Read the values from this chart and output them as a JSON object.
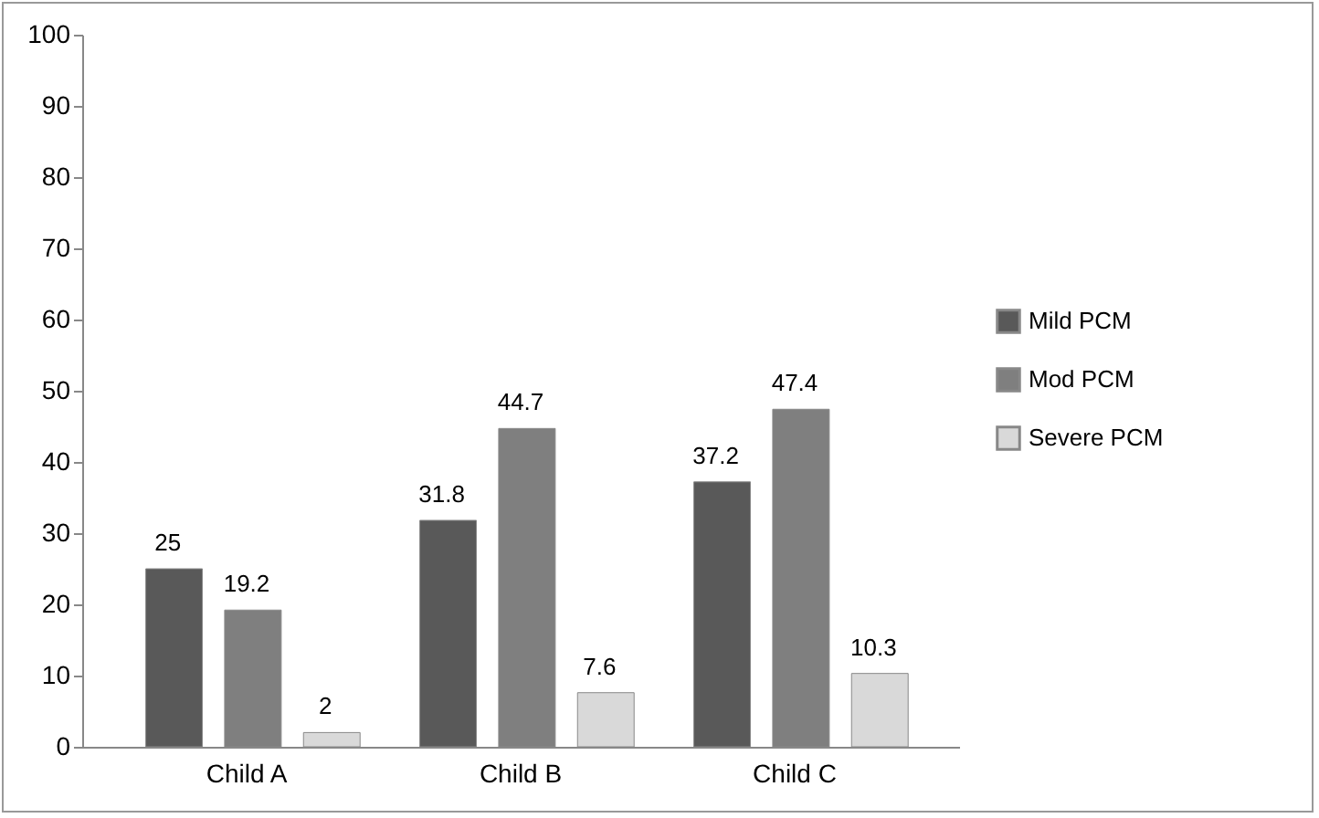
{
  "chart_data": {
    "type": "bar",
    "categories": [
      "Child A",
      "Child B",
      "Child C"
    ],
    "series": [
      {
        "name": "Mild PCM",
        "color": "#595959",
        "values": [
          25,
          31.8,
          37.2
        ]
      },
      {
        "name": "Mod PCM",
        "color": "#7f7f7f",
        "values": [
          19.2,
          44.7,
          47.4
        ]
      },
      {
        "name": "Severe PCM",
        "color": "#d9d9d9",
        "values": [
          2,
          7.6,
          10.3
        ]
      }
    ],
    "ylim": [
      0,
      100
    ],
    "yticks": [
      0,
      10,
      20,
      30,
      40,
      50,
      60,
      70,
      80,
      90,
      100
    ],
    "grid": false,
    "legend": "right",
    "data_labels": true
  }
}
